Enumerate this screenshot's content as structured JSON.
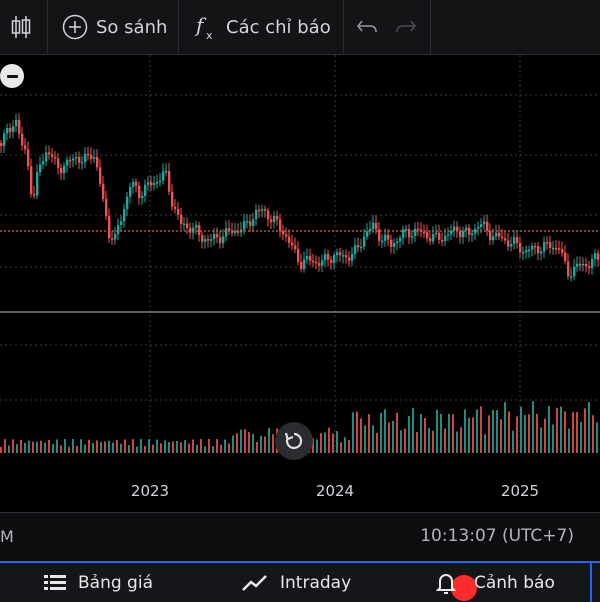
{
  "toolbar": {
    "compare_label": "So sánh",
    "indicators_label": "Các chỉ báo",
    "icons": [
      "candlestick-icon",
      "plus-circle-icon",
      "function-icon",
      "undo-icon",
      "redo-icon"
    ]
  },
  "chart": {
    "x_labels": [
      "2023",
      "2024",
      "2025"
    ],
    "colors": {
      "up": "#26a69a",
      "down": "#ef5350",
      "grid": "#363a45",
      "separator": "#787b86",
      "price_line": "#ef5350",
      "up_volume": "#26a69a",
      "down_volume": "#ef5350"
    },
    "price_line_style": "dotted"
  },
  "chart_data": {
    "type": "candlestick",
    "x_axis": "time",
    "x_ticks": [
      "2023",
      "2024",
      "2025"
    ],
    "grid": true,
    "panels": [
      "price",
      "volume"
    ],
    "description_points": [
      {
        "date": "2022-04",
        "close_trend": "high"
      },
      {
        "date": "2022-09",
        "close_trend": "falling"
      },
      {
        "date": "2023-01",
        "close_trend": "rebound"
      },
      {
        "date": "2023-06",
        "close_trend": "sideways"
      },
      {
        "date": "2023-10",
        "close_trend": "low"
      },
      {
        "date": "2024-06",
        "close_trend": "recovering"
      },
      {
        "date": "2025-01",
        "close_trend": "dip"
      },
      {
        "date": "2025-04",
        "close_trend": "recovering"
      }
    ]
  },
  "status": {
    "left_text": "M",
    "time": "10:13:07 (UTC+7)"
  },
  "bottom_nav": {
    "items": [
      {
        "label": "Bảng giá",
        "icon": "list-icon"
      },
      {
        "label": "Intraday",
        "icon": "line-chart-icon"
      },
      {
        "label": "Cảnh báo",
        "icon": "bell-icon"
      }
    ]
  }
}
